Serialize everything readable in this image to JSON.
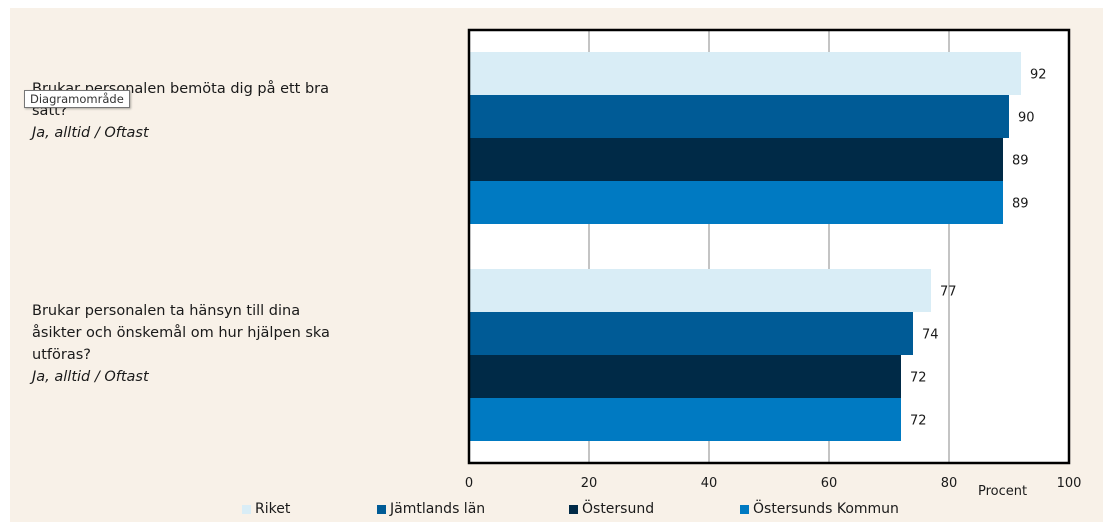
{
  "questions": [
    {
      "text": "Brukar personalen bemöta dig på ett bra sätt?",
      "sub": "Ja, alltid / Oftast"
    },
    {
      "text": "Brukar personalen ta hänsyn till dina åsikter och önskemål om hur hjälpen ska utföras?",
      "sub": "Ja, alltid / Oftast"
    }
  ],
  "tooltip": "Diagramområde",
  "chart_data": {
    "type": "bar",
    "orientation": "horizontal",
    "categories": [
      "Brukar personalen bemöta dig på ett bra sätt? Ja, alltid / Oftast",
      "Brukar personalen ta hänsyn till dina åsikter och önskemål om hur hjälpen ska utföras? Ja, alltid / Oftast"
    ],
    "series": [
      {
        "name": "Riket",
        "color": "#d9edf6",
        "values": [
          92,
          77
        ]
      },
      {
        "name": "Jämtlands län",
        "color": "#005b96",
        "values": [
          90,
          74
        ]
      },
      {
        "name": "Östersund",
        "color": "#002a47",
        "values": [
          89,
          72
        ]
      },
      {
        "name": "Östersunds Kommun",
        "color": "#007ac2",
        "values": [
          89,
          72
        ]
      }
    ],
    "xlabel": "Procent",
    "xlim": [
      0,
      100
    ],
    "xticks": [
      0,
      20,
      40,
      60,
      80,
      100
    ],
    "grid": true,
    "legend_position": "bottom",
    "data_labels": true
  }
}
